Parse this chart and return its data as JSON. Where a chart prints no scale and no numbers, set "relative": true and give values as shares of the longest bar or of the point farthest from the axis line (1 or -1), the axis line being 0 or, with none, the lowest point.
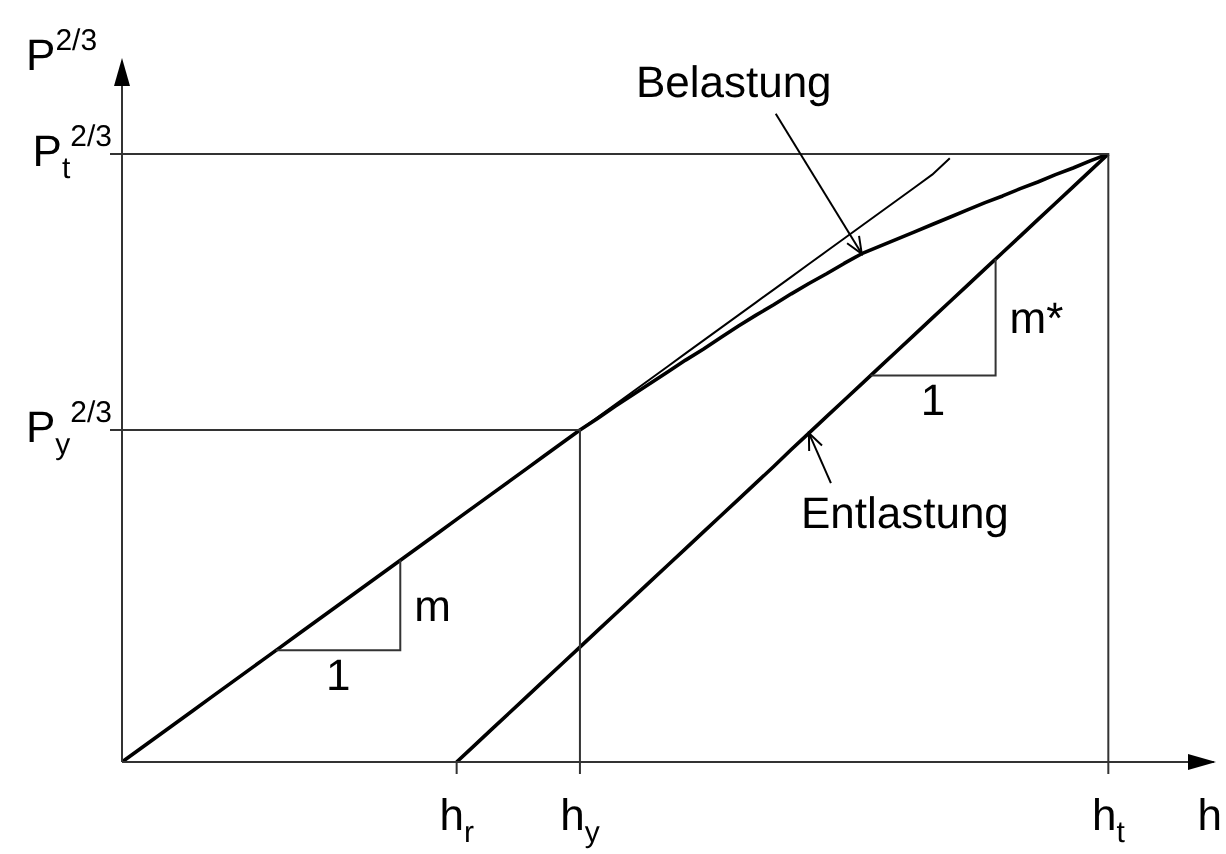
{
  "chart_data": {
    "type": "line",
    "relative": true,
    "xlabel": "h",
    "ylabel": "P$^{2/3}$",
    "categories": [
      null,
      null,
      null,
      null,
      null,
      null,
      null,
      null,
      null,
      null,
      null,
      null,
      null,
      null,
      null,
      null,
      null,
      null,
      null,
      "h$_{r}$",
      null,
      null,
      null,
      null,
      null,
      null,
      "h$_{y}$",
      null,
      null,
      null,
      null,
      null,
      null,
      null,
      null,
      null,
      null,
      null,
      null,
      null,
      null,
      null,
      null,
      null,
      null,
      null,
      null,
      null,
      null,
      null,
      null,
      null,
      null,
      null,
      null,
      null,
      "h$_{t}$",
      null,
      null,
      null,
      null,
      null,
      null
    ],
    "series": [
      {
        "name": "Belastung",
        "color": "#000000",
        "values": [
          0,
          0.021,
          0.042,
          0.063,
          0.084,
          0.105,
          0.126,
          0.147,
          0.168,
          0.189,
          0.21,
          0.231,
          0.252,
          0.273,
          0.294,
          0.315,
          0.336,
          0.357,
          0.378,
          0.399,
          0.42,
          0.441,
          0.462,
          0.483,
          0.504,
          0.525,
          0.546,
          0.565,
          0.585,
          0.604,
          0.623,
          0.642,
          0.661,
          0.679,
          0.698,
          0.717,
          0.735,
          0.752,
          0.77,
          0.787,
          0.803,
          0.82,
          0.836,
          0.848,
          0.86,
          0.872,
          0.884,
          0.896,
          0.908,
          0.92,
          0.931,
          0.943,
          0.954,
          0.966,
          0.977,
          0.989,
          1,
          null,
          null,
          null,
          null,
          null,
          null
        ]
      },
      {
        "color": "#000000",
        "values": [
          0,
          0.021,
          0.042,
          0.063,
          0.084,
          0.105,
          0.126,
          0.147,
          0.168,
          0.189,
          0.21,
          0.231,
          0.252,
          0.273,
          0.294,
          0.315,
          0.336,
          0.357,
          0.378,
          0.399,
          0.42,
          0.441,
          0.462,
          0.483,
          0.504,
          0.525,
          0.546,
          0.567,
          0.588,
          0.609,
          0.63,
          0.651,
          0.672,
          0.693,
          0.714,
          0.735,
          0.756,
          0.777,
          0.798,
          0.819,
          0.84,
          0.861,
          0.882,
          0.903,
          0.924,
          0.945,
          0.966,
          0.993,
          null,
          null,
          null,
          null,
          null,
          null,
          null,
          null,
          null,
          null,
          null,
          null,
          null,
          null,
          null
        ]
      },
      {
        "name": "Entlastung",
        "color": "#000000",
        "values": [
          null,
          null,
          null,
          null,
          null,
          null,
          null,
          null,
          null,
          null,
          null,
          null,
          null,
          null,
          null,
          null,
          null,
          null,
          null,
          0,
          0.027,
          0.054,
          0.081,
          0.108,
          0.135,
          0.162,
          0.189,
          0.216,
          0.243,
          0.27,
          0.297,
          0.324,
          0.351,
          0.378,
          0.405,
          0.432,
          0.459,
          0.486,
          0.514,
          0.541,
          0.568,
          0.595,
          0.622,
          0.649,
          0.676,
          0.703,
          0.73,
          0.757,
          0.784,
          0.811,
          0.838,
          0.865,
          0.892,
          0.919,
          0.946,
          0.973,
          1,
          null,
          null,
          null,
          null,
          null,
          null
        ]
      }
    ],
    "ref_lines": [
      {
        "axis": "y",
        "value": 1,
        "label": "P$_{t}$$^{2/3}$"
      },
      {
        "axis": "y",
        "value": 0.546,
        "label": "P$_{y}$$^{2/3}$"
      }
    ],
    "annotations": [
      "1",
      "m",
      "1",
      "m*"
    ]
  }
}
